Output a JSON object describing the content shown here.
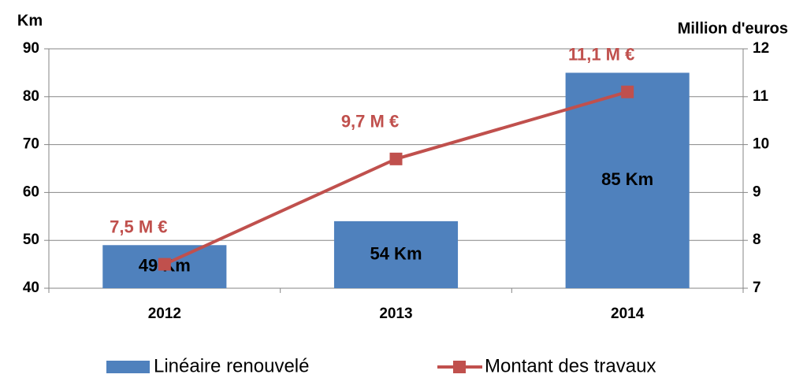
{
  "chart_data": {
    "type": "bar",
    "categories": [
      "2012",
      "2013",
      "2014"
    ],
    "y_label": "Km",
    "y2_label": "Million d'euros",
    "series": [
      {
        "name": "Linéaire renouvelé",
        "type": "bar",
        "color": "#4f81bd",
        "values": [
          49,
          54,
          85
        ],
        "value_labels": [
          "49 Km",
          "54 Km",
          "85 Km"
        ]
      },
      {
        "name": "Montant des travaux",
        "type": "line",
        "axis": "y2",
        "color": "#c0504d",
        "values": [
          7.5,
          9.7,
          11.1
        ],
        "value_labels": [
          "7,5 M €",
          "9,7 M €",
          "11,1 M €"
        ]
      }
    ],
    "ylim": [
      40,
      90
    ],
    "yticks": [
      40,
      50,
      60,
      70,
      80,
      90
    ],
    "y2lim": [
      7,
      12
    ],
    "y2ticks": [
      7,
      8,
      9,
      10,
      11,
      12
    ],
    "grid": true,
    "legend": "bottom"
  }
}
